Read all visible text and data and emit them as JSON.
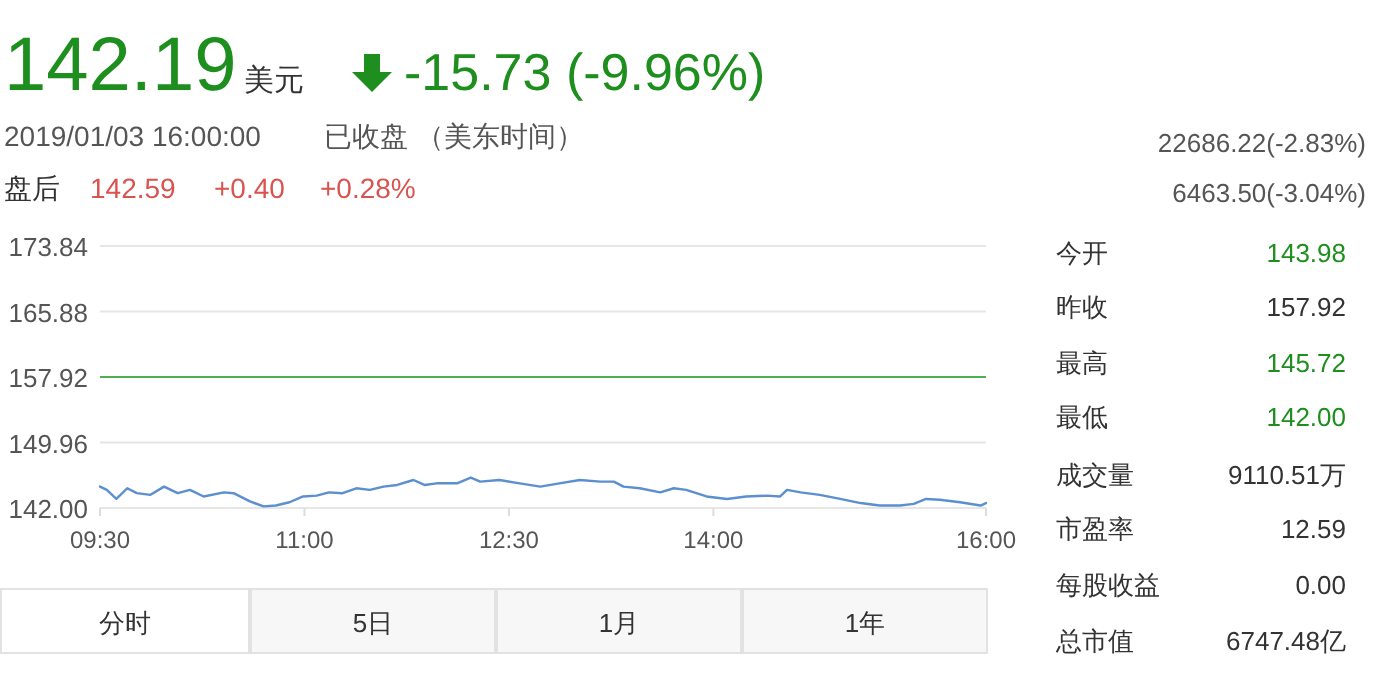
{
  "chart_data": {
    "type": "line",
    "title": "142.19",
    "annotations": [
      "美元",
      "-15.73 (-9.96%)",
      "2019/01/03 16:00:00",
      "已收盘 （美东时间）",
      "盘后",
      "142.59",
      "+0.40",
      "+0.28%",
      "22686.22(-2.83%)",
      "6463.50(-3.04%)",
      "今开",
      "143.98",
      "昨收",
      "157.92",
      "最高",
      "145.72",
      "最低",
      "142.00",
      "成交量",
      "9110.51万",
      "市盈率",
      "12.59",
      "每股收益",
      "0.00",
      "总市值",
      "6747.48亿",
      "分时",
      "5日",
      "1月",
      "1年"
    ],
    "series": [
      {
        "color": "#5b8fd0",
        "x": [
          9.5,
          9.55,
          9.62,
          9.7,
          9.77,
          9.87,
          9.97,
          10.07,
          10.16,
          10.26,
          10.41,
          10.48,
          10.6,
          10.7,
          10.79,
          10.89,
          10.99,
          11.09,
          11.18,
          11.28,
          11.38,
          11.48,
          11.58,
          11.68,
          11.8,
          11.88,
          11.97,
          12.12,
          12.22,
          12.29,
          12.43,
          12.58,
          12.73,
          12.87,
          13.02,
          13.17,
          13.27,
          13.34,
          13.46,
          13.61,
          13.71,
          13.8,
          13.95,
          14.1,
          14.24,
          14.39,
          14.49,
          14.54,
          14.64,
          14.78,
          14.93,
          15.08,
          15.22,
          15.37,
          15.47,
          15.56,
          15.66,
          15.81,
          15.96,
          16.0
        ],
        "values": [
          144.6,
          144.2,
          143.1,
          144.4,
          143.8,
          143.6,
          144.6,
          143.8,
          144.2,
          143.4,
          143.9,
          143.8,
          142.8,
          142.2,
          142.3,
          142.7,
          143.4,
          143.5,
          143.9,
          143.8,
          144.4,
          144.2,
          144.6,
          144.8,
          145.4,
          144.8,
          145.0,
          145.0,
          145.7,
          145.2,
          145.4,
          145.0,
          144.6,
          145.0,
          145.4,
          145.2,
          145.2,
          144.6,
          144.4,
          143.9,
          144.4,
          144.2,
          143.4,
          143.1,
          143.4,
          143.5,
          143.4,
          144.2,
          143.9,
          143.6,
          143.1,
          142.6,
          142.3,
          142.3,
          142.5,
          143.1,
          143.0,
          142.7,
          142.3,
          142.6
        ]
      }
    ],
    "xlim": [
      9.5,
      16
    ],
    "xticks": [
      {
        "value": 9.5,
        "label": "09:30"
      },
      {
        "value": 11,
        "label": "11:00"
      },
      {
        "value": 12.5,
        "label": "12:30"
      },
      {
        "value": 14,
        "label": "14:00"
      },
      {
        "value": 16,
        "label": "16:00"
      }
    ],
    "ylim": [
      142,
      173.84
    ],
    "yticks": [
      {
        "value": 142,
        "label": "142.00"
      },
      149.96,
      157.92,
      165.88,
      173.84
    ],
    "ref_lines": [
      {
        "axis": "y",
        "value": 157.92,
        "color": "#4caf50"
      }
    ],
    "grid": "y"
  }
}
